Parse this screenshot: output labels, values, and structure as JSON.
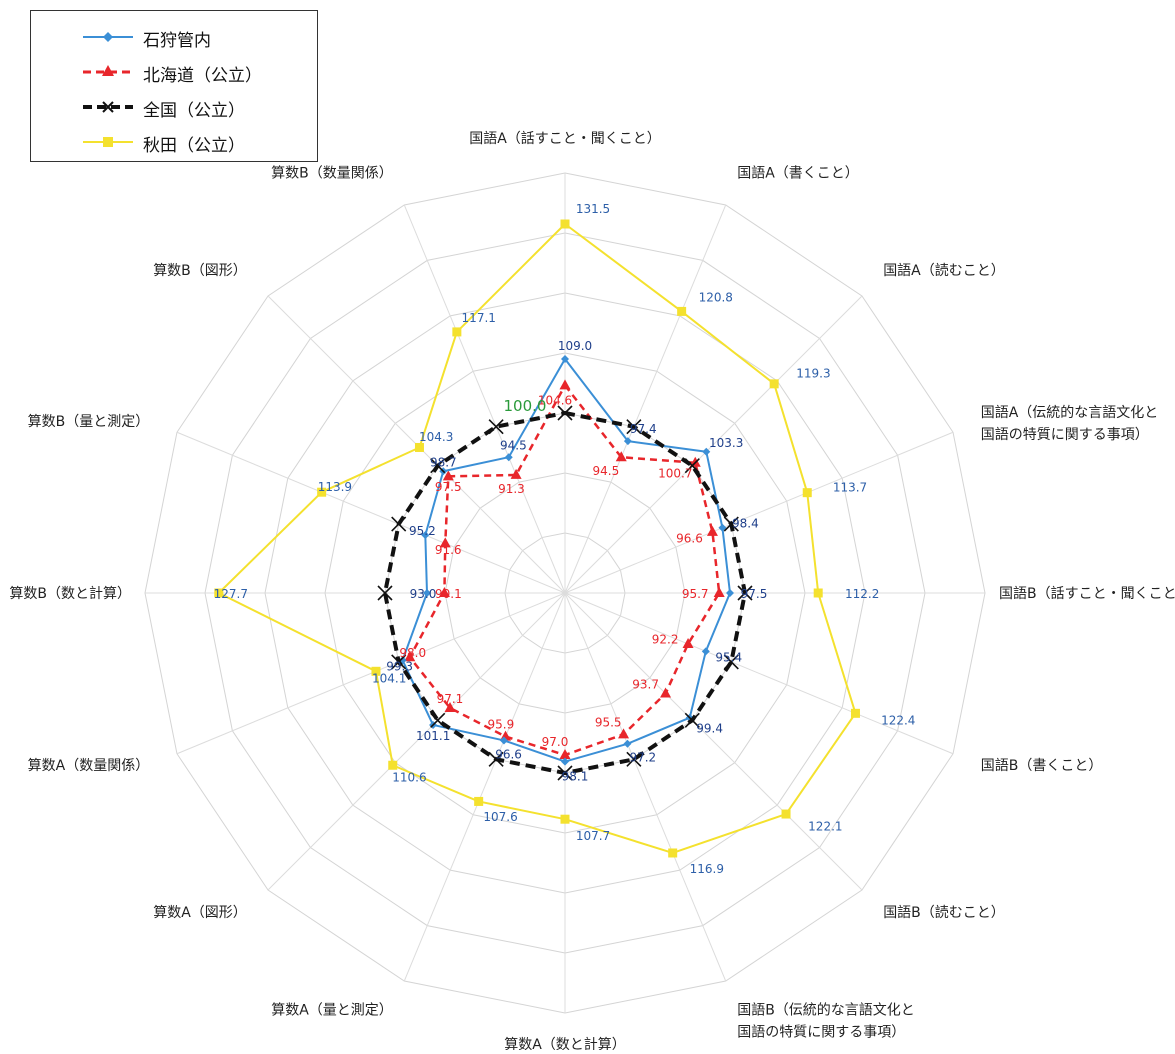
{
  "chart_data": {
    "type": "radar",
    "title": "",
    "categories": [
      "国語A（話すこと・聞くこと）",
      "国語A（書くこと）",
      "国語A（読むこと）",
      "国語A（伝統的な言語文化と|国語の特質に関する事項）",
      "国語B（話すこと・聞くこと）",
      "国語B（書くこと）",
      "国語B（読むこと）",
      "国語B（伝統的な言語文化と|国語の特質に関する事項）",
      "算数A（数と計算）",
      "算数A（量と測定）",
      "算数A（図形）",
      "算数A（数量関係）",
      "算数B（数と計算）",
      "算数B（量と測定）",
      "算数B（図形）",
      "算数B（数量関係）"
    ],
    "series": [
      {
        "name": "石狩管内",
        "color": "#3b8fd6",
        "marker": "diamond",
        "dash": "solid",
        "values": [
          109.0,
          97.4,
          103.3,
          98.4,
          97.5,
          95.4,
          99.4,
          97.2,
          98.1,
          96.6,
          101.1,
          99.3,
          93.0,
          95.2,
          98.7,
          94.5
        ]
      },
      {
        "name": "北海道（公立）",
        "color": "#e8262b",
        "marker": "triangle",
        "dash": "dashed",
        "values": [
          104.6,
          94.5,
          100.7,
          96.6,
          95.7,
          92.2,
          93.7,
          95.5,
          97.0,
          95.9,
          97.1,
          98.0,
          90.1,
          91.6,
          97.5,
          91.3
        ]
      },
      {
        "name": "全国（公立）",
        "color": "#111111",
        "marker": "cross",
        "dash": "dashed",
        "values": [
          100.0,
          100.0,
          100.0,
          100.0,
          100.0,
          100.0,
          100.0,
          100.0,
          100.0,
          100.0,
          100.0,
          100.0,
          100.0,
          100.0,
          100.0,
          100.0
        ]
      },
      {
        "name": "秋田（公立）",
        "color": "#f4e12e",
        "marker": "square",
        "dash": "solid",
        "values": [
          131.5,
          120.8,
          119.3,
          113.7,
          112.2,
          122.4,
          122.1,
          116.9,
          107.7,
          107.6,
          110.6,
          104.1,
          127.7,
          113.9,
          104.3,
          117.1
        ]
      }
    ],
    "national_label": "100.0",
    "rmin": 70,
    "rmax": 140,
    "ring_step": 10,
    "grid": true,
    "legend_position": "top-left"
  }
}
